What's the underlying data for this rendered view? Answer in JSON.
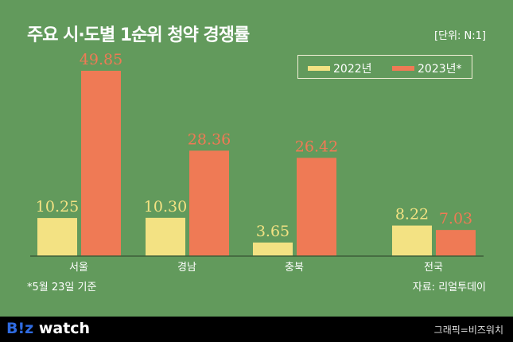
{
  "chart_data": {
    "type": "bar",
    "title": "주요 시·도별 1순위 청약 경쟁률",
    "unit": "[단위: N:1]",
    "categories": [
      "서울",
      "경남",
      "충북",
      "전국"
    ],
    "series": [
      {
        "name": "2022년",
        "color": "#f3e283",
        "values": [
          10.25,
          10.3,
          3.65,
          8.22
        ],
        "labels": [
          "10.25",
          "10.30",
          "3.65",
          "8.22"
        ]
      },
      {
        "name": "2023년*",
        "color": "#ef7a55",
        "values": [
          49.85,
          28.36,
          26.42,
          7.03
        ],
        "labels": [
          "49.85",
          "28.36",
          "26.42",
          "7.03"
        ]
      }
    ],
    "ylim": [
      0,
      50
    ],
    "grid": false,
    "legend": "top-right",
    "note": "*5월 23일 기준",
    "source": "자료: 리얼투데이"
  },
  "footer": {
    "logo": "B!z watch",
    "logo_parts": [
      "B!z",
      " watch"
    ],
    "credit": "그래픽=비즈워치"
  }
}
